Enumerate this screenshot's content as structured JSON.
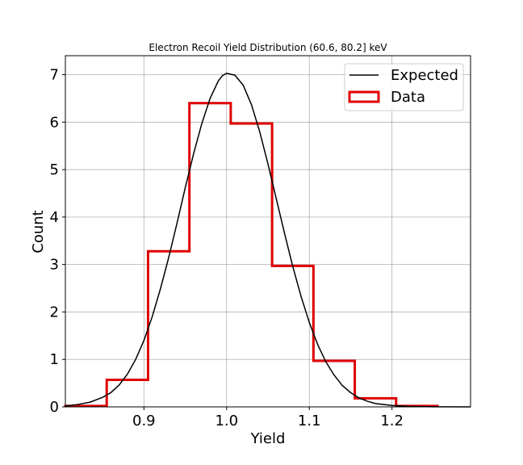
{
  "chart_data": {
    "type": "line",
    "title": "Electron Recoil Yield Distribution (60.6, 80.2] keV",
    "xlabel": "Yield",
    "ylabel": "Count",
    "xlim": [
      0.805,
      1.295
    ],
    "ylim": [
      0,
      7.4
    ],
    "xticks": [
      "0.9",
      "1.0",
      "1.1",
      "1.2"
    ],
    "xtick_values": [
      0.9,
      1.0,
      1.1,
      1.2
    ],
    "yticks": [
      "0",
      "1",
      "2",
      "3",
      "4",
      "5",
      "6",
      "7"
    ],
    "ytick_values": [
      0,
      1,
      2,
      3,
      4,
      5,
      6,
      7
    ],
    "grid": true,
    "legend_position": "top-right",
    "series": [
      {
        "name": "Expected",
        "style": "line",
        "color": "#000000",
        "x": [
          0.805,
          0.82,
          0.835,
          0.85,
          0.86,
          0.87,
          0.88,
          0.89,
          0.9,
          0.91,
          0.92,
          0.93,
          0.94,
          0.95,
          0.96,
          0.97,
          0.98,
          0.99,
          0.995,
          1.0,
          1.01,
          1.02,
          1.03,
          1.04,
          1.05,
          1.06,
          1.07,
          1.08,
          1.09,
          1.1,
          1.11,
          1.12,
          1.13,
          1.14,
          1.15,
          1.16,
          1.17,
          1.18,
          1.2,
          1.22,
          1.25,
          1.295
        ],
        "y": [
          0.02,
          0.05,
          0.1,
          0.2,
          0.3,
          0.46,
          0.69,
          1.0,
          1.4,
          1.9,
          2.49,
          3.15,
          3.87,
          4.62,
          5.33,
          5.97,
          6.5,
          6.87,
          6.98,
          7.03,
          6.99,
          6.78,
          6.37,
          5.8,
          5.12,
          4.39,
          3.66,
          2.96,
          2.33,
          1.78,
          1.32,
          0.95,
          0.67,
          0.45,
          0.3,
          0.19,
          0.12,
          0.07,
          0.03,
          0.01,
          0.003,
          0.0
        ]
      },
      {
        "name": "Data",
        "style": "step",
        "color": "#e00000",
        "bin_edges": [
          0.805,
          0.855,
          0.905,
          0.955,
          1.005,
          1.055,
          1.105,
          1.155,
          1.205,
          1.255
        ],
        "values": [
          0.02,
          0.57,
          3.28,
          6.4,
          5.97,
          2.97,
          0.97,
          0.18,
          0.02
        ]
      }
    ]
  }
}
